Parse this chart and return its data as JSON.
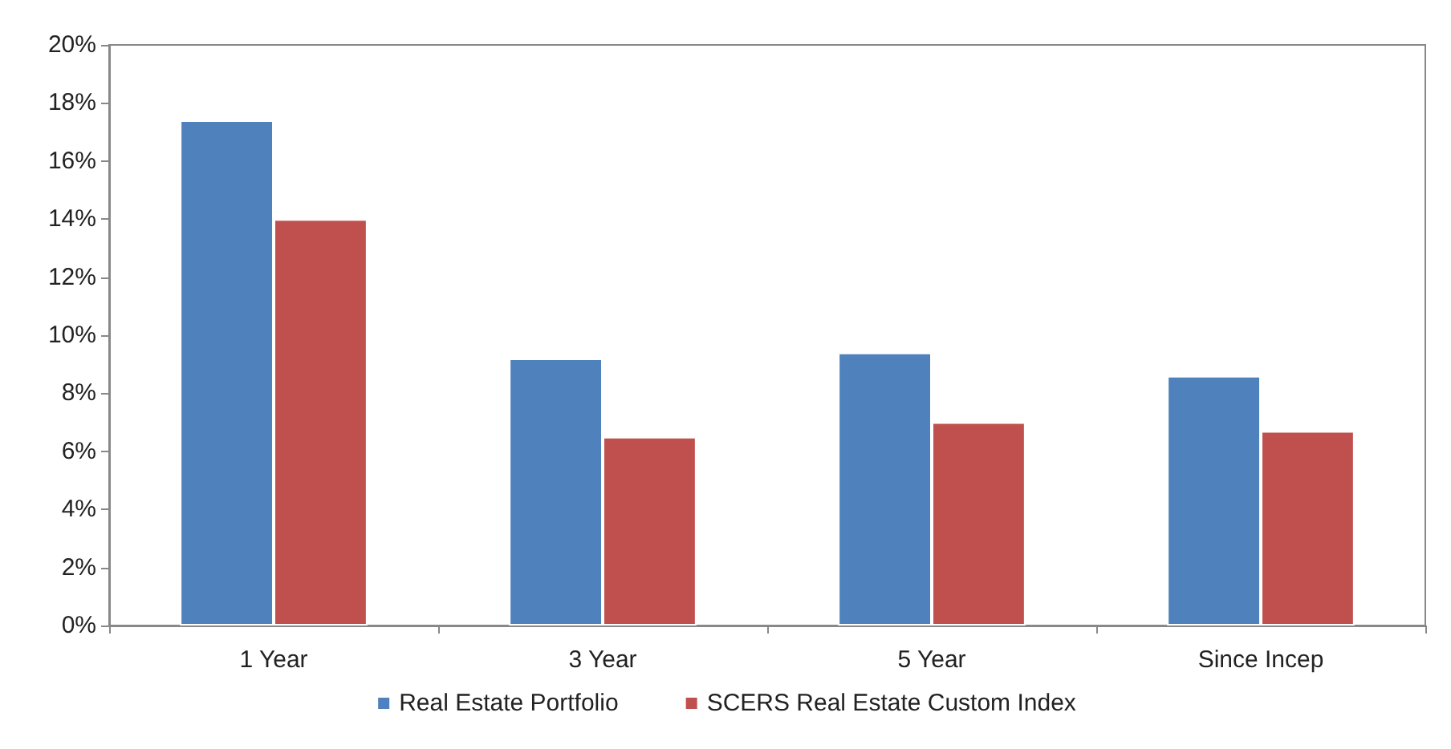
{
  "chart_data": {
    "type": "bar",
    "categories": [
      "1 Year",
      "3 Year",
      "5 Year",
      "Since Incep"
    ],
    "series": [
      {
        "name": "Real Estate Portfolio",
        "color": "#4f81bd",
        "values": [
          17.4,
          9.2,
          9.4,
          8.6
        ]
      },
      {
        "name": "SCERS Real Estate Custom Index",
        "color": "#c0504d",
        "values": [
          14.0,
          6.5,
          7.0,
          6.7
        ]
      }
    ],
    "ylim": [
      0,
      20
    ],
    "yticks": [
      {
        "value": 0,
        "label": "0%"
      },
      {
        "value": 2,
        "label": "2%"
      },
      {
        "value": 4,
        "label": "4%"
      },
      {
        "value": 6,
        "label": "6%"
      },
      {
        "value": 8,
        "label": "8%"
      },
      {
        "value": 10,
        "label": "10%"
      },
      {
        "value": 12,
        "label": "12%"
      },
      {
        "value": 14,
        "label": "14%"
      },
      {
        "value": 16,
        "label": "16%"
      },
      {
        "value": 18,
        "label": "18%"
      },
      {
        "value": 20,
        "label": "20%"
      }
    ],
    "grid": false,
    "legend": "bottom"
  }
}
